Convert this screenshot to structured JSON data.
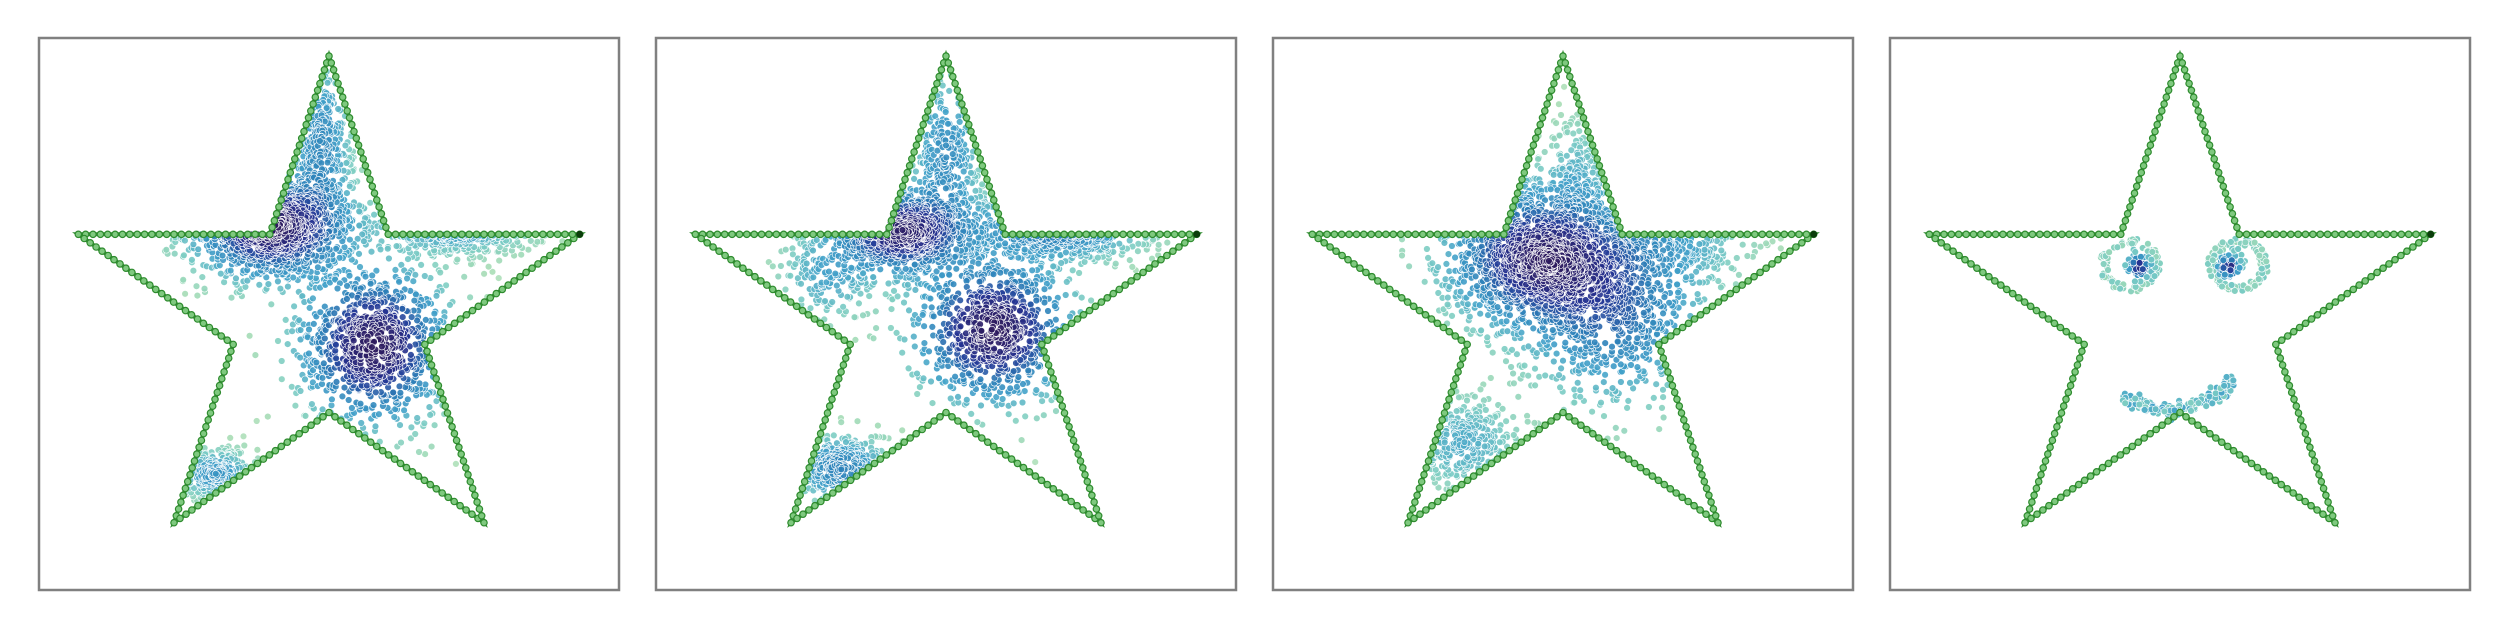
{
  "chart_data": [
    {
      "type": "scatter",
      "title": "",
      "xlim": [
        -1.1,
        1.1
      ],
      "ylim": [
        -1.07,
        1.07
      ],
      "grid": false,
      "boundary": {
        "shape": "five-pointed star",
        "outer_radius": 1.0,
        "inner_radius": 0.382,
        "color": "#2e8b2e",
        "marker_color": "#7fc97f"
      },
      "colormap": [
        "#e0f3db",
        "#a8ddb5",
        "#7bccc4",
        "#43a2ca",
        "#2c7fb8",
        "#253494",
        "#2d1b5e"
      ],
      "clusters": [
        {
          "cx": -0.22,
          "cy": 0.34,
          "sx": 0.16,
          "sy": 0.11,
          "weight": 0.34
        },
        {
          "cx": 0.17,
          "cy": -0.12,
          "sx": 0.15,
          "sy": 0.16,
          "weight": 0.34
        },
        {
          "cx": -0.43,
          "cy": -0.62,
          "sx": 0.08,
          "sy": 0.05,
          "weight": 0.1
        },
        {
          "cx": 0.48,
          "cy": 0.35,
          "sx": 0.16,
          "sy": 0.06,
          "weight": 0.1
        },
        {
          "cx": -0.03,
          "cy": 0.66,
          "sx": 0.06,
          "sy": 0.18,
          "weight": 0.12
        }
      ]
    },
    {
      "type": "scatter",
      "title": "",
      "xlim": [
        -1.1,
        1.1
      ],
      "ylim": [
        -1.07,
        1.07
      ],
      "grid": false,
      "boundary": {
        "shape": "five-pointed star",
        "outer_radius": 1.0,
        "inner_radius": 0.382,
        "color": "#2e8b2e",
        "marker_color": "#7fc97f"
      },
      "colormap": [
        "#e0f3db",
        "#a8ddb5",
        "#7bccc4",
        "#43a2ca",
        "#2c7fb8",
        "#253494",
        "#2d1b5e"
      ],
      "clusters": [
        {
          "cx": -0.17,
          "cy": 0.32,
          "sx": 0.14,
          "sy": 0.09,
          "weight": 0.28
        },
        {
          "cx": 0.18,
          "cy": -0.06,
          "sx": 0.16,
          "sy": 0.15,
          "weight": 0.3
        },
        {
          "cx": -0.4,
          "cy": -0.6,
          "sx": 0.1,
          "sy": 0.07,
          "weight": 0.12
        },
        {
          "cx": 0.42,
          "cy": 0.34,
          "sx": 0.18,
          "sy": 0.07,
          "weight": 0.14
        },
        {
          "cx": 0.0,
          "cy": 0.62,
          "sx": 0.07,
          "sy": 0.17,
          "weight": 0.1
        },
        {
          "cx": -0.45,
          "cy": 0.15,
          "sx": 0.1,
          "sy": 0.1,
          "weight": 0.06
        }
      ]
    },
    {
      "type": "scatter",
      "title": "",
      "xlim": [
        -1.1,
        1.1
      ],
      "ylim": [
        -1.07,
        1.07
      ],
      "grid": false,
      "boundary": {
        "shape": "five-pointed star",
        "outer_radius": 1.0,
        "inner_radius": 0.382,
        "color": "#2e8b2e",
        "marker_color": "#7fc97f"
      },
      "colormap": [
        "#e0f3db",
        "#a8ddb5",
        "#7bccc4",
        "#43a2ca",
        "#2c7fb8",
        "#253494",
        "#2d1b5e"
      ],
      "clusters": [
        {
          "cx": -0.09,
          "cy": 0.22,
          "sx": 0.19,
          "sy": 0.15,
          "weight": 0.5
        },
        {
          "cx": 0.2,
          "cy": 0.02,
          "sx": 0.19,
          "sy": 0.2,
          "weight": 0.26
        },
        {
          "cx": -0.38,
          "cy": -0.5,
          "sx": 0.12,
          "sy": 0.1,
          "weight": 0.1
        },
        {
          "cx": 0.42,
          "cy": 0.28,
          "sx": 0.16,
          "sy": 0.08,
          "weight": 0.08
        },
        {
          "cx": 0.05,
          "cy": 0.55,
          "sx": 0.06,
          "sy": 0.12,
          "weight": 0.06
        }
      ]
    },
    {
      "type": "scatter",
      "title": "",
      "xlim": [
        -1.1,
        1.1
      ],
      "ylim": [
        -1.07,
        1.07
      ],
      "grid": false,
      "boundary": {
        "shape": "five-pointed star",
        "outer_radius": 1.0,
        "inner_radius": 0.382,
        "color": "#2e8b2e",
        "marker_color": "#7fc97f"
      },
      "colormap": [
        "#e0f3db",
        "#a8ddb5",
        "#7bccc4",
        "#43a2ca",
        "#2c7fb8",
        "#253494",
        "#2d1b5e"
      ],
      "smiley": {
        "left_eye": {
          "cx": -0.19,
          "cy": 0.19,
          "r": 0.1
        },
        "right_eye": {
          "cx": 0.22,
          "cy": 0.19,
          "r": 0.1
        },
        "mouth": {
          "cx": -0.05,
          "cy": -0.35,
          "points": [
            [
              -0.22,
              -0.33
            ],
            [
              -0.05,
              -0.38
            ],
            [
              0.12,
              -0.33
            ],
            [
              0.2,
              -0.26
            ]
          ]
        }
      }
    }
  ]
}
